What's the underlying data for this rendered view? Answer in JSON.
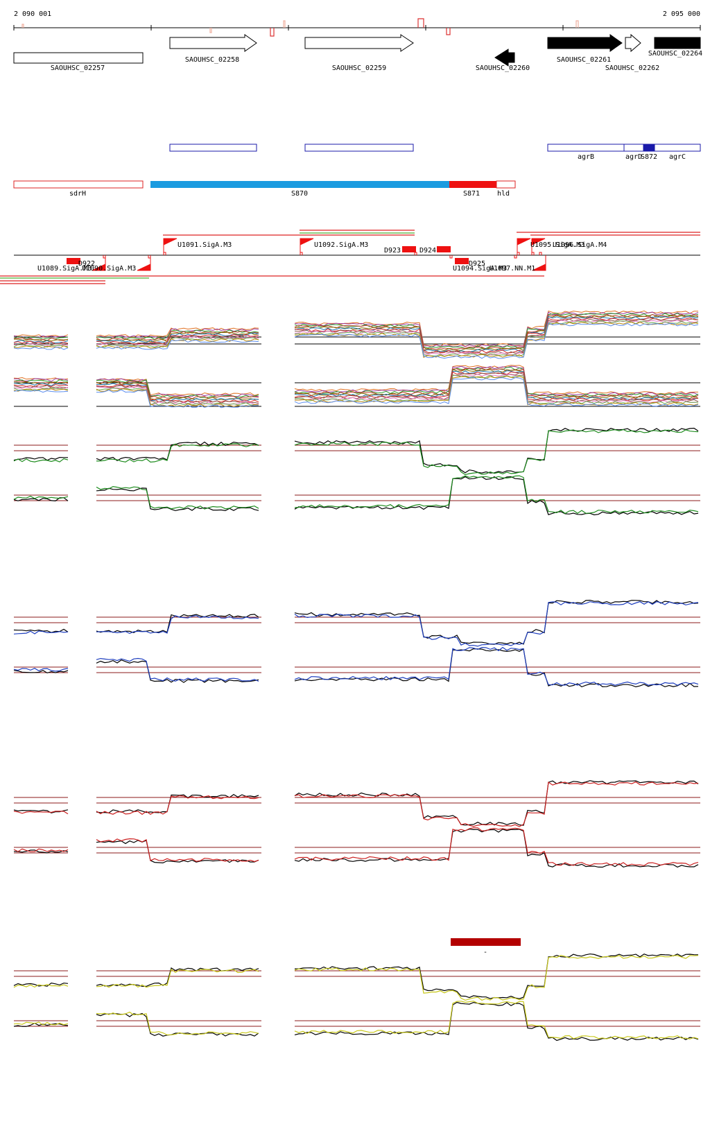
{
  "coordinates": {
    "start_label": "2 090 001",
    "end_label": "2 095 000"
  },
  "genes": [
    {
      "name": "SAOUHSC_02257",
      "fill": "none",
      "shape": "box"
    },
    {
      "name": "SAOUHSC_02258",
      "fill": "none",
      "shape": "arrow-right"
    },
    {
      "name": "SAOUHSC_02259",
      "fill": "none",
      "shape": "arrow-right"
    },
    {
      "name": "SAOUHSC_02260",
      "fill": "#000000",
      "shape": "arrow-left"
    },
    {
      "name": "SAOUHSC_02261",
      "fill": "#000000",
      "shape": "arrow-right"
    },
    {
      "name": "SAOUHSC_02262",
      "fill": "none",
      "shape": "arrow-right"
    },
    {
      "name": "SAOUHSC_02264",
      "fill": "#000000",
      "shape": "box"
    }
  ],
  "blue_features": [
    {
      "name": ""
    },
    {
      "name": ""
    },
    {
      "name": "agrB"
    },
    {
      "name": "agrD"
    },
    {
      "name": "S872"
    },
    {
      "name": "agrC"
    }
  ],
  "segments": [
    {
      "name": "sdrH",
      "color": "#dd2222"
    },
    {
      "name": "S870",
      "color": "#1a9be0"
    },
    {
      "name": "S871",
      "color": "#ee1111"
    },
    {
      "name": "hld",
      "color": "#dd2222"
    }
  ],
  "promoters": [
    "U1091.SigA.M3",
    "U1092.SigA.M3",
    "D923",
    "D924",
    "U1089.SigA.M3",
    "U1090.SigA.M3",
    "D922",
    "D925",
    "U1094.SigA.M3",
    "U1097.NN.M1",
    "U1095.SigA.M3",
    "U1096.SigA.M4"
  ],
  "bottom_marker": {
    "label": "-",
    "color": "#b30000"
  },
  "colors": {
    "reference_line": "#8b1a1a",
    "panel_green": "#1e8c1e",
    "panel_blue": "#1f3fbf",
    "panel_red": "#cc2020",
    "panel_yellow": "#c8c81a"
  }
}
